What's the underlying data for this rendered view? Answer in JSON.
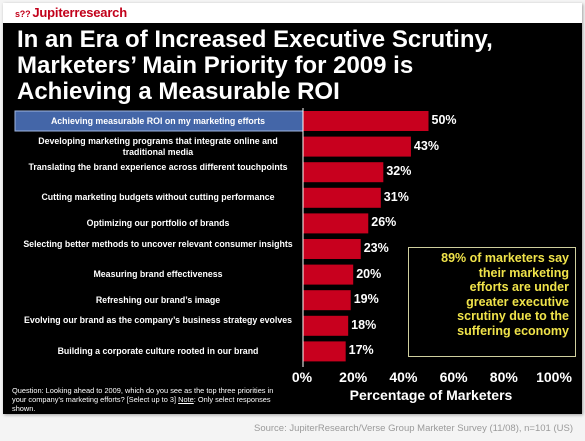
{
  "logo": {
    "mark": "s??",
    "text": "Jupiterresearch"
  },
  "title_lines": [
    "In an Era of Increased Executive Scrutiny,",
    "Marketers’ Main Priority for 2009 is",
    "Achieving a Measurable ROI"
  ],
  "chart_data": {
    "type": "bar",
    "orientation": "horizontal",
    "categories": [
      "Achieving measurable ROI on my marketing efforts",
      "Developing marketing programs that integrate online and traditional media",
      "Translating the brand experience across different touchpoints",
      "Cutting marketing budgets without cutting performance",
      "Optimizing our portfolio of brands",
      "Selecting better methods to uncover relevant consumer insights",
      "Measuring brand effectiveness",
      "Refreshing our brand’s image",
      "Evolving our brand as the company’s business strategy evolves",
      "Building a corporate culture rooted in our brand"
    ],
    "values": [
      50,
      43,
      32,
      31,
      26,
      23,
      20,
      19,
      18,
      17
    ],
    "value_labels": [
      "50%",
      "43%",
      "32%",
      "31%",
      "26%",
      "23%",
      "20%",
      "19%",
      "18%",
      "17%"
    ],
    "xlabel": "Percentage of Marketers",
    "xlim": [
      0,
      100
    ],
    "xticks": [
      0,
      20,
      40,
      60,
      80,
      100
    ],
    "xtick_labels": [
      "0%",
      "20%",
      "40%",
      "60%",
      "80%",
      "100%"
    ],
    "highlighted_category": "Achieving measurable ROI on my marketing efforts",
    "bar_color": "#c8001e",
    "highlight_color": "#4466a8",
    "grid": false
  },
  "callout": {
    "lines": [
      "89% of marketers say",
      "their marketing",
      "efforts are under",
      "greater executive",
      "scrutiny due to the",
      "suffering economy"
    ]
  },
  "question": {
    "text": "Question: Looking ahead to 2009, which do you see as the top three priorities in your company’s marketing efforts? [Select up to 3]",
    "note_label": "Note",
    "note_text": ": Only select responses shown."
  },
  "source": "Source: JupiterResearch/Verse Group Marketer Survey (11/08), n=101 (US)"
}
